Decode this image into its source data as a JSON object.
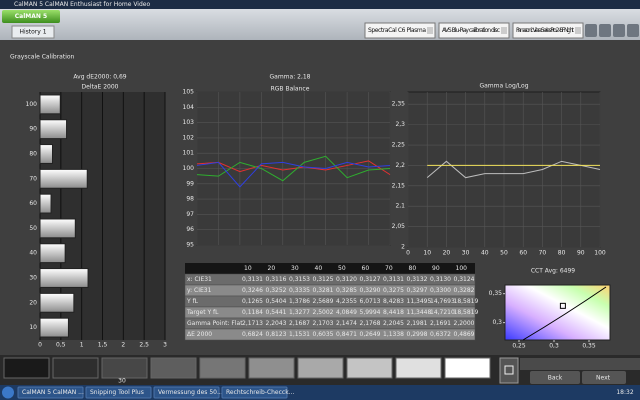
{
  "window": {
    "title": "CalMAN 5 CalMAN Enthusiast for Home Video",
    "logo": "CalMAN 5",
    "tab": "History 1",
    "dropdowns": [
      "SpectraCal C6 Plasma",
      "AVS Blu-Ray calibration disc",
      "Panasonic Viera Series Pro 2 - ISF Night"
    ]
  },
  "page_title": "Grayscale Calibration",
  "gamma_heading": "Gamma: 2,18",
  "chart_data": [
    {
      "type": "hbar",
      "title": "Avg dE2000: 0,69",
      "subtitle": "DeltaE 2000",
      "categories": [
        "100",
        "90",
        "80",
        "70",
        "60",
        "50",
        "40",
        "30",
        "20",
        "10"
      ],
      "values": [
        0.4869,
        0.6372,
        0.2998,
        1.1338,
        0.2649,
        0.8471,
        0.6035,
        1.1531,
        0.8123,
        0.6824
      ],
      "xlim": [
        0,
        3
      ],
      "xticks": [
        0,
        {
          "value": 0.5,
          "label": "0,5"
        },
        1,
        {
          "value": 1.5,
          "label": "1,5"
        },
        2,
        {
          "value": 2.5,
          "label": "2,5"
        },
        3
      ],
      "grid": true
    },
    {
      "type": "line",
      "title": "RGB Balance",
      "x": [
        10,
        20,
        30,
        40,
        50,
        60,
        70,
        80,
        90,
        100
      ],
      "xlim": [
        10,
        100
      ],
      "ylim": [
        95,
        105
      ],
      "yticks": [
        95,
        96,
        97,
        98,
        99,
        100,
        101,
        102,
        103,
        104,
        105
      ],
      "grid": true,
      "series": [
        {
          "color": "#e53030",
          "values": [
            100.3,
            100.4,
            99.8,
            100.2,
            99.9,
            100.1,
            99.9,
            100.2,
            100.5,
            99.6
          ]
        },
        {
          "color": "#2fae2f",
          "values": [
            99.6,
            99.5,
            100.4,
            100.0,
            99.2,
            100.4,
            100.8,
            99.4,
            99.9,
            100.0
          ]
        },
        {
          "color": "#2f3fe0",
          "values": [
            100.2,
            100.4,
            98.8,
            100.3,
            100.4,
            100.1,
            100.0,
            100.4,
            100.1,
            100.2
          ]
        }
      ]
    },
    {
      "type": "line",
      "title": "Gamma Log/Log",
      "x": [
        10,
        20,
        30,
        40,
        50,
        60,
        70,
        80,
        90,
        100
      ],
      "xlim": [
        0,
        100
      ],
      "ylim": [
        2,
        2.38
      ],
      "xticks": [
        0,
        10,
        20,
        30,
        40,
        50,
        60,
        70,
        80,
        90,
        100
      ],
      "yticks": [
        2,
        {
          "value": 2.05,
          "label": "2,05"
        },
        {
          "value": 2.1,
          "label": "2,1"
        },
        {
          "value": 2.15,
          "label": "2,15"
        },
        {
          "value": 2.2,
          "label": "2,2"
        },
        {
          "value": 2.25,
          "label": "2,25"
        },
        {
          "value": 2.3,
          "label": "2,3"
        },
        {
          "value": 2.35,
          "label": "2,35"
        }
      ],
      "grid": true,
      "series": [
        {
          "color": "#bdbdbd",
          "values": [
            2.17,
            2.21,
            2.17,
            2.18,
            2.18,
            2.18,
            2.19,
            2.21,
            2.2,
            2.19
          ]
        },
        {
          "color": "#f2e25a",
          "values": [
            2.2,
            2.2,
            2.2,
            2.2,
            2.2,
            2.2,
            2.2,
            2.2,
            2.2,
            2.2
          ]
        }
      ]
    },
    {
      "type": "scatter",
      "title": "CCT Avg: 6499",
      "x": [
        0.3127
      ],
      "values": [
        0.329
      ],
      "xlim": [
        0.23,
        0.38
      ],
      "ylim": [
        0.27,
        0.365
      ],
      "xticks": [
        {
          "value": 0.25,
          "label": "0,25"
        },
        {
          "value": 0.3,
          "label": "0,3"
        },
        {
          "value": 0.35,
          "label": "0,35"
        }
      ],
      "yticks": [
        {
          "value": 0.3,
          "label": "0,3"
        },
        {
          "value": 0.35,
          "label": "0,35"
        }
      ]
    }
  ],
  "table": {
    "header": [
      "10",
      "20",
      "30",
      "40",
      "50",
      "60",
      "70",
      "80",
      "90",
      "100"
    ],
    "rows": [
      [
        "x: CIE31",
        "0,3131",
        "0,3116",
        "0,3153",
        "0,3125",
        "0,3120",
        "0,3127",
        "0,3131",
        "0,3132",
        "0,3130",
        "0,3124"
      ],
      [
        "y: CIE31",
        "0,3246",
        "0,3252",
        "0,3335",
        "0,3281",
        "0,3285",
        "0,3290",
        "0,3275",
        "0,3297",
        "0,3300",
        "0,3282"
      ],
      [
        "Y fL",
        "0,1265",
        "0,5404",
        "1,3786",
        "2,5689",
        "4,2355",
        "6,0713",
        "8,4283",
        "11,3495",
        "14,7693",
        "18,5819"
      ],
      [
        "Target Y fL",
        "0,1184",
        "0,5441",
        "1,3277",
        "2,5002",
        "4,0849",
        "5,9994",
        "8,4418",
        "11,3448",
        "14,7210",
        "18,5819"
      ],
      [
        "Gamma Point: Flat",
        "2,1713",
        "2,2043",
        "2,1687",
        "2,1703",
        "2,1474",
        "2,1768",
        "2,2045",
        "2,1981",
        "2,1691",
        "2,2000"
      ],
      [
        "ΔE 2000",
        "0,6824",
        "0,8123",
        "1,1531",
        "0,6035",
        "0,8471",
        "0,2649",
        "1,1338",
        "0,2998",
        "0,6372",
        "0,4869"
      ]
    ]
  },
  "swatch_label": "30",
  "nav": {
    "back": "Back",
    "next": "Next"
  },
  "taskbar": {
    "items": [
      "CalMAN 5 CalMAN ...",
      "Snipping Tool Plus",
      "Vermessung des 50...",
      "Rechtschreib-Checck..."
    ],
    "clock": "18:32"
  }
}
